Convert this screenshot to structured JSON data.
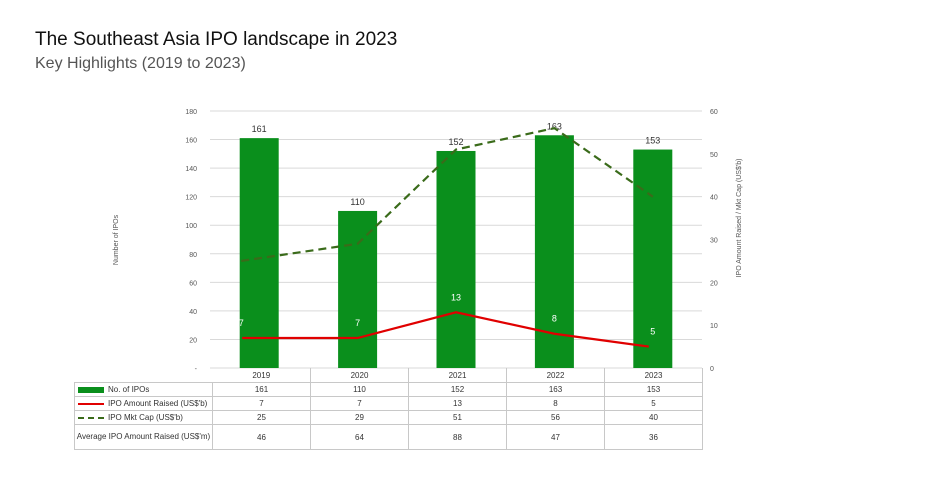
{
  "page": {
    "title": "The Southeast Asia IPO landscape in 2023",
    "subtitle": "Key Highlights (2019 to 2023)"
  },
  "colors": {
    "bar": "#0a8f1c",
    "amount_line": "#e00000",
    "mktcap_line": "#3a6b1a",
    "grid": "#d9d9d9"
  },
  "chart_data": {
    "type": "bar",
    "categories": [
      "2019",
      "2020",
      "2021",
      "2022",
      "2023"
    ],
    "series": [
      {
        "name": "No. of IPOs",
        "type": "bar",
        "axis": "left",
        "values": [
          161,
          110,
          152,
          163,
          153
        ],
        "labels": [
          "161",
          "110",
          "152",
          "163",
          "153"
        ]
      },
      {
        "name": "IPO Amount Raised (US$'b)",
        "type": "line",
        "axis": "right",
        "values": [
          7,
          7,
          13,
          8,
          5
        ],
        "labels": [
          "7",
          "7",
          "13",
          "8",
          "5"
        ]
      },
      {
        "name": "IPO Mkt Cap (US$'b)",
        "type": "line-dashed",
        "axis": "right",
        "values": [
          25,
          29,
          51,
          56,
          40
        ],
        "labels": [
          "25",
          "29",
          "51",
          "56",
          "40"
        ]
      }
    ],
    "left_axis": {
      "label": "Number of IPOs",
      "ylim": [
        0,
        180
      ],
      "ticks": [
        "-",
        "20",
        "40",
        "60",
        "80",
        "100",
        "120",
        "140",
        "160",
        "180"
      ]
    },
    "right_axis": {
      "label": "IPO Amount Raised / Mkt Cap (US$'b)",
      "ylim": [
        0,
        60
      ],
      "ticks": [
        "0",
        "10",
        "20",
        "30",
        "40",
        "50",
        "60"
      ]
    },
    "grid": true
  },
  "table": {
    "rows": [
      {
        "label": "No. of IPOs",
        "key": "bar",
        "values": [
          "161",
          "110",
          "152",
          "163",
          "153"
        ]
      },
      {
        "label": "IPO Amount Raised (US$'b)",
        "key": "red",
        "values": [
          "7",
          "7",
          "13",
          "8",
          "5"
        ]
      },
      {
        "label": "IPO Mkt Cap (US$'b)",
        "key": "dash",
        "values": [
          "25",
          "29",
          "51",
          "56",
          "40"
        ]
      }
    ],
    "avg_row": {
      "label": "Average IPO Amount Raised (US$'m)",
      "values": [
        "46",
        "64",
        "88",
        "47",
        "36"
      ]
    }
  }
}
